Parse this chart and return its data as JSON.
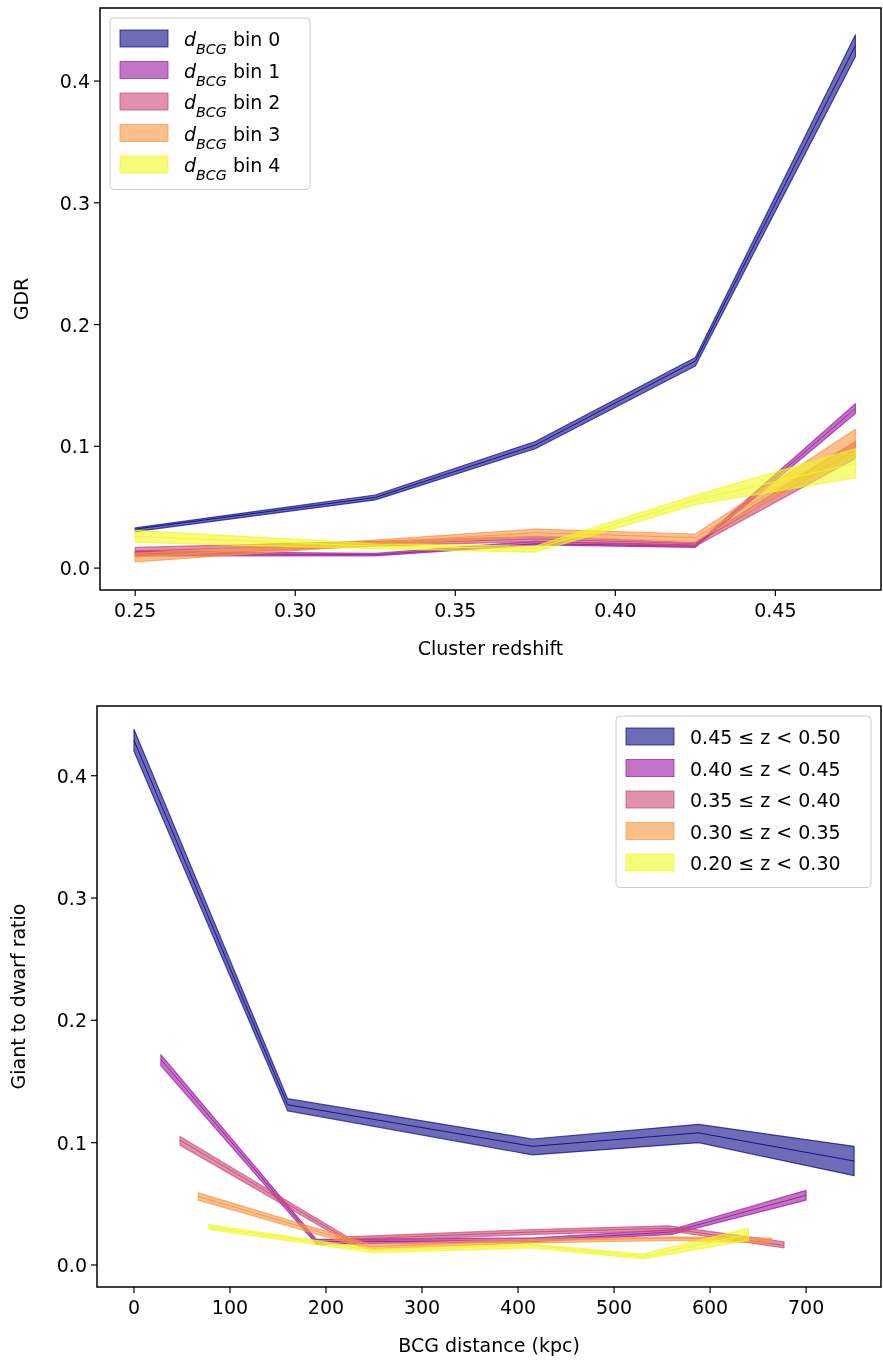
{
  "chart_data": [
    {
      "type": "line",
      "xlabel": "Cluster redshift",
      "ylabel": "GDR",
      "x": [
        0.25,
        0.325,
        0.375,
        0.425,
        0.475
      ],
      "xlim": [
        0.239,
        0.483
      ],
      "ylim": [
        -0.018,
        0.46
      ],
      "xticks": [
        {
          "value": 0.25,
          "label": "0.25"
        },
        {
          "value": 0.3,
          "label": "0.30"
        },
        {
          "value": 0.35,
          "label": "0.35"
        },
        {
          "value": 0.4,
          "label": "0.40"
        },
        {
          "value": 0.45,
          "label": "0.45"
        }
      ],
      "yticks": [
        {
          "value": 0,
          "label": "0.0"
        },
        0.1,
        0.2,
        0.3,
        0.4
      ],
      "legend": "top left",
      "grid": false,
      "series": [
        {
          "name": "d$_{BCG}$ bin 0",
          "color": "#0d0887",
          "values": [
            0.032,
            0.058,
            0.101,
            0.17,
            0.429
          ],
          "lower": [
            0.03,
            0.056,
            0.098,
            0.166,
            0.42
          ],
          "upper": [
            0.033,
            0.06,
            0.104,
            0.173,
            0.438
          ]
        },
        {
          "name": "d$_{BCG}$ bin 1",
          "color": "#9c179e",
          "values": [
            0.012,
            0.011,
            0.02,
            0.018,
            0.131
          ],
          "lower": [
            0.01,
            0.01,
            0.019,
            0.017,
            0.127
          ],
          "upper": [
            0.014,
            0.012,
            0.022,
            0.019,
            0.135
          ]
        },
        {
          "name": "d$_{BCG}$ bin 2",
          "color": "#cc4778",
          "values": [
            0.014,
            0.02,
            0.024,
            0.02,
            0.097
          ],
          "lower": [
            0.01,
            0.018,
            0.022,
            0.018,
            0.09
          ],
          "upper": [
            0.017,
            0.022,
            0.026,
            0.021,
            0.104
          ]
        },
        {
          "name": "d$_{BCG}$ bin 3",
          "color": "#f89540",
          "values": [
            0.009,
            0.021,
            0.029,
            0.025,
            0.104
          ],
          "lower": [
            0.005,
            0.019,
            0.026,
            0.022,
            0.094
          ],
          "upper": [
            0.012,
            0.023,
            0.032,
            0.028,
            0.114
          ]
        },
        {
          "name": "d$_{BCG}$ bin 4",
          "color": "#f0f921",
          "values": [
            0.026,
            0.018,
            0.016,
            0.056,
            0.086
          ],
          "lower": [
            0.021,
            0.016,
            0.013,
            0.052,
            0.074
          ],
          "upper": [
            0.031,
            0.02,
            0.018,
            0.06,
            0.098
          ]
        }
      ]
    },
    {
      "type": "line",
      "xlabel": "BCG distance (kpc)",
      "ylabel": "Giant to dwarf ratio",
      "xlim": [
        -38.5,
        778
      ],
      "ylim": [
        -0.018,
        0.457
      ],
      "xticks": [
        0,
        100,
        200,
        300,
        400,
        500,
        600,
        700
      ],
      "yticks": [
        {
          "value": 0,
          "label": "0.0"
        },
        0.1,
        0.2,
        0.3,
        0.4
      ],
      "legend": "top right",
      "grid": false,
      "series": [
        {
          "name": "0.45 ≤ z < 0.50",
          "color": "#0d0887",
          "x": [
            0,
            160,
            415,
            588,
            750
          ],
          "values": [
            0.429,
            0.131,
            0.097,
            0.108,
            0.085
          ],
          "lower": [
            0.42,
            0.126,
            0.09,
            0.1,
            0.073
          ],
          "upper": [
            0.438,
            0.136,
            0.103,
            0.115,
            0.097
          ]
        },
        {
          "name": "0.40 ≤ z < 0.45",
          "color": "#9c179e",
          "x": [
            28,
            190,
            415,
            560,
            700
          ],
          "values": [
            0.168,
            0.019,
            0.02,
            0.027,
            0.057
          ],
          "lower": [
            0.163,
            0.017,
            0.019,
            0.025,
            0.053
          ],
          "upper": [
            0.172,
            0.021,
            0.022,
            0.029,
            0.061
          ]
        },
        {
          "name": "0.35 ≤ z < 0.40",
          "color": "#cc4778",
          "x": [
            48,
            222,
            415,
            557,
            677
          ],
          "values": [
            0.102,
            0.021,
            0.027,
            0.03,
            0.016
          ],
          "lower": [
            0.098,
            0.019,
            0.025,
            0.028,
            0.014
          ],
          "upper": [
            0.105,
            0.023,
            0.029,
            0.032,
            0.019
          ]
        },
        {
          "name": "0.30 ≤ z < 0.35",
          "color": "#f89540",
          "x": [
            67,
            245,
            415,
            560,
            664
          ],
          "values": [
            0.056,
            0.015,
            0.02,
            0.022,
            0.02
          ],
          "lower": [
            0.053,
            0.013,
            0.018,
            0.02,
            0.018
          ],
          "upper": [
            0.059,
            0.017,
            0.021,
            0.023,
            0.022
          ]
        },
        {
          "name": "0.20 ≤ z < 0.30",
          "color": "#f0f921",
          "x": [
            78,
            250,
            415,
            530,
            640
          ],
          "values": [
            0.031,
            0.012,
            0.016,
            0.007,
            0.025
          ],
          "lower": [
            0.029,
            0.01,
            0.014,
            0.005,
            0.02
          ],
          "upper": [
            0.033,
            0.013,
            0.017,
            0.009,
            0.03
          ]
        }
      ]
    }
  ]
}
